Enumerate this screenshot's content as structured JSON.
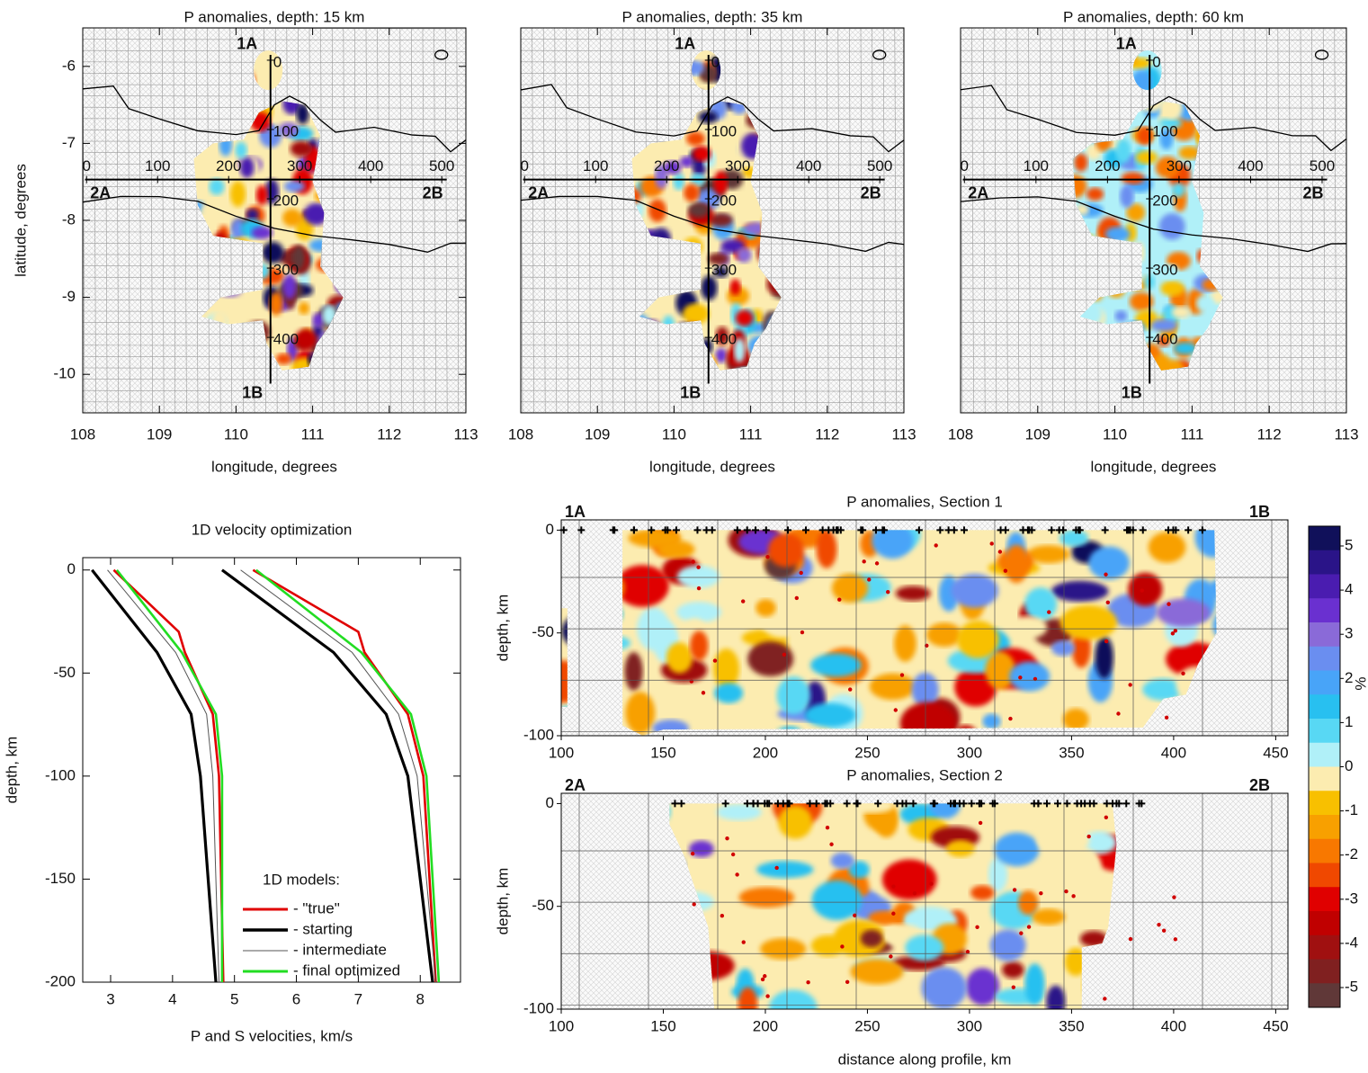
{
  "chart_data": [
    {
      "type": "map",
      "title": "P anomalies, depth: 15 km",
      "xlabel": "longitude, degrees",
      "ylabel": "latitude, degrees",
      "xlim": [
        108,
        113
      ],
      "ylim": [
        -10.5,
        -5.5
      ],
      "xticks": [
        108,
        109,
        110,
        111,
        112,
        113
      ],
      "yticks": [
        -6,
        -7,
        -8,
        -9,
        -10
      ],
      "profile1": {
        "start": "1A",
        "end": "1B",
        "ticks": [
          0,
          100,
          200,
          300,
          400
        ]
      },
      "profile2": {
        "start": "2A",
        "end": "2B",
        "ticks": [
          0,
          100,
          200,
          300,
          400,
          500
        ]
      }
    },
    {
      "type": "map",
      "title": "P anomalies, depth: 35 km",
      "xlabel": "longitude, degrees",
      "xlim": [
        108,
        113
      ],
      "ylim": [
        -10.5,
        -5.5
      ],
      "xticks": [
        108,
        109,
        110,
        111,
        112,
        113
      ],
      "profile1": {
        "start": "1A",
        "end": "1B",
        "ticks": [
          0,
          100,
          200,
          300,
          400
        ]
      },
      "profile2": {
        "start": "2A",
        "end": "2B",
        "ticks": [
          0,
          100,
          200,
          300,
          400,
          500
        ]
      }
    },
    {
      "type": "map",
      "title": "P anomalies, depth: 60 km",
      "xlabel": "longitude, degrees",
      "xlim": [
        108,
        113
      ],
      "ylim": [
        -10.5,
        -5.5
      ],
      "xticks": [
        108,
        109,
        110,
        111,
        112,
        113
      ],
      "profile1": {
        "start": "1A",
        "end": "1B",
        "ticks": [
          0,
          100,
          200,
          300,
          400
        ]
      },
      "profile2": {
        "start": "2A",
        "end": "2B",
        "ticks": [
          0,
          100,
          200,
          300,
          400,
          500
        ]
      }
    },
    {
      "type": "line",
      "title": "1D velocity optimization",
      "xlabel": "P and S velocities, km/s",
      "ylabel": "depth, km",
      "xlim": [
        2.55,
        8.65
      ],
      "ylim": [
        -200,
        6
      ],
      "xticks": [
        3,
        4,
        5,
        6,
        7,
        8
      ],
      "yticks": [
        0,
        -50,
        -100,
        -150,
        -200
      ],
      "legend_title": "1D models:",
      "legend": "lower right",
      "series": [
        {
          "name": "- \"true\"",
          "color": "#e00000",
          "depth": [
            0,
            -30,
            -40,
            -70,
            -100,
            -200
          ],
          "vp": [
            5.3,
            7.0,
            7.1,
            7.8,
            8.05,
            8.25
          ],
          "vs": [
            3.05,
            4.1,
            4.2,
            4.65,
            4.75,
            4.82
          ]
        },
        {
          "name": "- starting",
          "color": "#000000",
          "depth": [
            0,
            -40,
            -70,
            -100,
            -200
          ],
          "vp": [
            4.8,
            6.6,
            7.45,
            7.8,
            8.2
          ],
          "vs": [
            2.7,
            3.75,
            4.3,
            4.45,
            4.7
          ]
        },
        {
          "name": "- intermediate",
          "color": "#555555",
          "depth": [
            0,
            -40,
            -70,
            -100,
            -200
          ],
          "vp": [
            5.1,
            6.9,
            7.65,
            7.95,
            8.25
          ],
          "vs": [
            2.95,
            4.05,
            4.55,
            4.65,
            4.75
          ]
        },
        {
          "name": "- final optimized",
          "color": "#22dd22",
          "depth": [
            0,
            -40,
            -70,
            -100,
            -200
          ],
          "vp": [
            5.35,
            7.05,
            7.85,
            8.1,
            8.3
          ],
          "vs": [
            3.1,
            4.15,
            4.7,
            4.8,
            4.8
          ]
        }
      ]
    },
    {
      "type": "section",
      "title": "P anomalies, Section 1",
      "start": "1A",
      "end": "1B",
      "ylabel": "depth, km",
      "xlim": [
        100,
        456
      ],
      "ylim": [
        -100,
        5
      ],
      "xticks": [
        100,
        150,
        200,
        250,
        300,
        350,
        400,
        450
      ],
      "yticks": [
        0,
        -50,
        -100
      ]
    },
    {
      "type": "section",
      "title": "P anomalies, Section 2",
      "start": "2A",
      "end": "2B",
      "ylabel": "depth, km",
      "xlabel": "distance along profile, km",
      "xlim": [
        100,
        456
      ],
      "ylim": [
        -100,
        5
      ],
      "xticks": [
        100,
        150,
        200,
        250,
        300,
        350,
        400,
        450
      ],
      "yticks": [
        0,
        -50,
        -100
      ]
    }
  ],
  "colorbar": {
    "label": "%",
    "ticks": [
      5,
      4,
      3,
      2,
      1,
      0,
      -1,
      -2,
      -3,
      -4,
      -5
    ],
    "colors": [
      "#10105a",
      "#2a1488",
      "#4a1cb0",
      "#6a30d0",
      "#8a6ad8",
      "#6a8ef0",
      "#48a4f8",
      "#28c0f0",
      "#58d8f4",
      "#b0f0f8",
      "#fcecb0",
      "#f8c000",
      "#f8a000",
      "#f87800",
      "#f04800",
      "#e00000",
      "#c00000",
      "#a01010",
      "#802020",
      "#603838"
    ]
  }
}
